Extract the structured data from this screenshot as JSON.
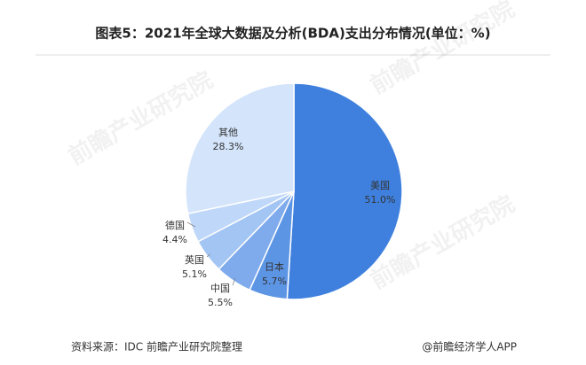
{
  "chart_data": {
    "type": "pie",
    "title": "图表5：2021年全球大数据及分析(BDA)支出分布情况(单位：%)",
    "categories": [
      "美国",
      "日本",
      "中国",
      "英国",
      "德国",
      "其他"
    ],
    "values": [
      51.0,
      5.7,
      5.5,
      5.1,
      4.4,
      28.3
    ],
    "value_labels": [
      "51.0%",
      "5.7%",
      "5.5%",
      "5.1%",
      "4.4%",
      "28.3%"
    ],
    "colors": [
      "#3f80de",
      "#5d95e5",
      "#7fabec",
      "#a3c5f3",
      "#bfd7f8",
      "#d3e4fb"
    ],
    "source": "资料来源：IDC 前瞻产业研究院整理",
    "credit": "@前瞻经济学人APP",
    "watermark": "前瞻产业研究院"
  }
}
